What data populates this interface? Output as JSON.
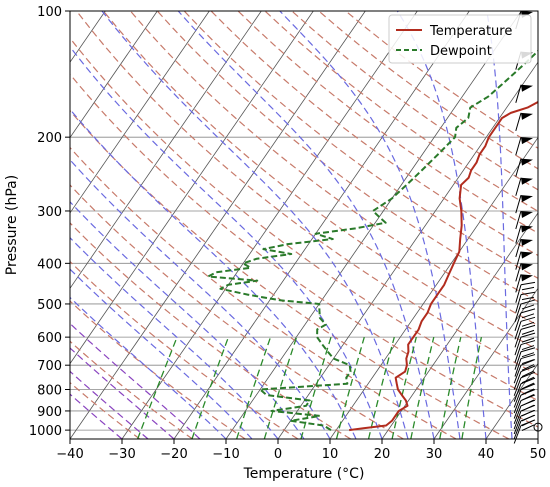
{
  "chart_data": {
    "type": "line",
    "title": "",
    "xlabel": "Temperature (°C)",
    "ylabel": "Pressure (hPa)",
    "xlim": [
      -40,
      50
    ],
    "ylim": [
      1050,
      100
    ],
    "y_scale": "log",
    "x_ticks": [
      -40,
      -30,
      -20,
      -10,
      0,
      10,
      20,
      30,
      40,
      50
    ],
    "x_tick_labels": [
      "−40",
      "−30",
      "−20",
      "−10",
      "0",
      "10",
      "20",
      "30",
      "40",
      "50"
    ],
    "y_ticks": [
      100,
      200,
      300,
      400,
      500,
      600,
      700,
      800,
      900,
      1000
    ],
    "y_tick_labels": [
      "100",
      "200",
      "300",
      "400",
      "500",
      "600",
      "700",
      "800",
      "900",
      "1000"
    ],
    "grid": true,
    "legend_position": "top-right",
    "series": [
      {
        "name": "Temperature",
        "color": "#b22c1e",
        "style": "solid",
        "pressure": [
          1000,
          990,
          975,
          950,
          925,
          900,
          875,
          850,
          825,
          800,
          775,
          750,
          725,
          700,
          675,
          650,
          625,
          600,
          575,
          550,
          525,
          500,
          475,
          450,
          425,
          400,
          375,
          350,
          325,
          300,
          280,
          260,
          250,
          240,
          230,
          220,
          210,
          200,
          190,
          180,
          175,
          170,
          160,
          150,
          140,
          130,
          120,
          110,
          100
        ],
        "values": [
          12.5,
          15,
          19,
          19.5,
          19.5,
          19.5,
          20.5,
          19.5,
          18,
          16.5,
          15.5,
          14.5,
          15.5,
          15,
          14,
          13.5,
          12.5,
          12.5,
          12.5,
          12,
          12,
          11.5,
          11.5,
          11.5,
          11,
          10.5,
          10,
          8.5,
          7,
          5,
          3,
          1.5,
          2,
          1.5,
          1.5,
          1,
          1,
          0.5,
          0.5,
          0.5,
          1.5,
          4,
          6.5,
          8,
          9.5,
          10,
          11,
          11.5,
          12
        ]
      },
      {
        "name": "Dewpoint",
        "color": "#2a7a2a",
        "style": "dashed",
        "pressure": [
          1000,
          975,
          950,
          925,
          900,
          875,
          850,
          825,
          800,
          775,
          750,
          725,
          700,
          675,
          650,
          625,
          600,
          575,
          560,
          540,
          520,
          500,
          490,
          475,
          460,
          450,
          440,
          430,
          420,
          410,
          400,
          390,
          380,
          370,
          360,
          350,
          340,
          330,
          320,
          310,
          300,
          280,
          260,
          240,
          220,
          200,
          190,
          180,
          170,
          160,
          150,
          140,
          130,
          120,
          110,
          100
        ],
        "values": [
          9,
          7,
          0,
          5,
          -5,
          1,
          1,
          -8,
          -10,
          6,
          5,
          5,
          4,
          0,
          -2,
          -4,
          -6,
          -7,
          -6,
          -8,
          -9,
          -10,
          -18,
          -25,
          -31,
          -30,
          -25,
          -35,
          -34,
          -28,
          -30,
          -28,
          -22,
          -28,
          -24,
          -16,
          -20,
          -13,
          -8,
          -10,
          -12,
          -10,
          -9,
          -8,
          -7,
          -6,
          -7,
          -6,
          -7,
          -5,
          -4,
          -3,
          -2,
          -1,
          -1,
          -2
        ]
      }
    ]
  },
  "legend": {
    "temperature_label": "Temperature",
    "dewpoint_label": "Dewpoint"
  },
  "colors": {
    "dry_adiabats": "#c77a6a",
    "moist_adiabats": "#6a6ae0",
    "mixing_ratio": "#2a8a2a",
    "isotherms": "#555555",
    "pressure_grid": "#888888",
    "far_moist": "#8a44c0"
  },
  "barbs": {
    "present": true,
    "color": "#000000",
    "calm_circle_at_1000": true
  }
}
